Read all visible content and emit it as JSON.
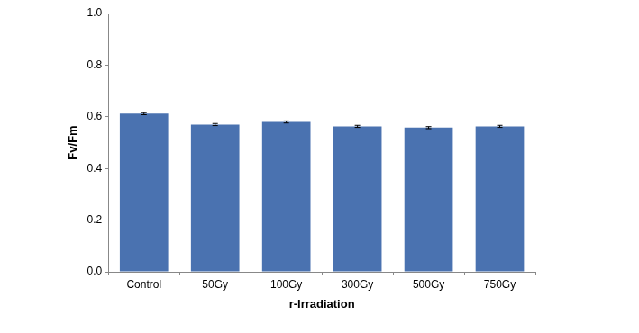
{
  "chart_data": {
    "type": "bar",
    "x_label": "r-Irradiation",
    "y_label": "Fv/Fm",
    "categories": [
      "Control",
      "50Gy",
      "100Gy",
      "300Gy",
      "500Gy",
      "750Gy"
    ],
    "values": [
      0.612,
      0.57,
      0.58,
      0.563,
      0.558,
      0.563
    ],
    "errors": [
      0.004,
      0.004,
      0.004,
      0.004,
      0.004,
      0.004
    ],
    "color": "#4a72b0",
    "ylim": [
      0,
      1
    ],
    "yticks": [
      {
        "value": 0,
        "label": "0.0"
      },
      0.2,
      0.4,
      0.6,
      0.8,
      {
        "value": 1,
        "label": "1.0"
      }
    ],
    "grid": false
  }
}
